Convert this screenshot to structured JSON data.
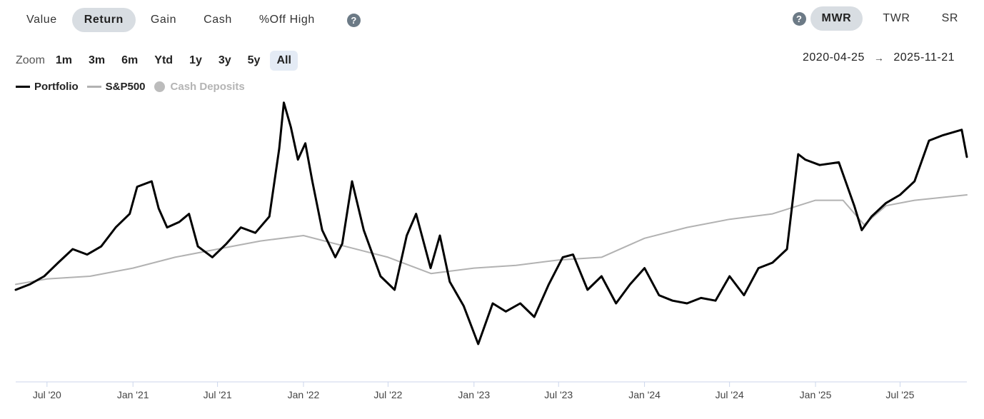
{
  "metric_tabs": [
    {
      "label": "Value",
      "active": false
    },
    {
      "label": "Return",
      "active": true
    },
    {
      "label": "Gain",
      "active": false
    },
    {
      "label": "Cash",
      "active": false
    },
    {
      "label": "%Off High",
      "active": false
    }
  ],
  "method_tabs": [
    {
      "label": "MWR",
      "active": true
    },
    {
      "label": "TWR",
      "active": false
    },
    {
      "label": "SR",
      "active": false
    }
  ],
  "help_icon": "?",
  "zoom": {
    "label": "Zoom",
    "options": [
      "1m",
      "3m",
      "6m",
      "Ytd",
      "1y",
      "3y",
      "5y",
      "All"
    ],
    "active": "All"
  },
  "date_range": {
    "start": "2020-04-25",
    "arrow": "→",
    "end": "2025-11-21"
  },
  "legend": [
    {
      "name": "Portfolio",
      "color": "#000000",
      "marker": "line",
      "enabled": true
    },
    {
      "name": "S&P500",
      "color": "#b2b2b2",
      "marker": "line",
      "enabled": true
    },
    {
      "name": "Cash Deposits",
      "color": "#bcbcbc",
      "marker": "dot",
      "enabled": false
    }
  ],
  "chart_data": {
    "type": "line",
    "title": "",
    "xlabel": "",
    "ylabel": "",
    "x_axis": {
      "range": [
        "2020-04-25",
        "2025-11-21"
      ],
      "ticks": [
        {
          "date": "2020-07-01",
          "label": "Jul '20"
        },
        {
          "date": "2021-01-01",
          "label": "Jan '21"
        },
        {
          "date": "2021-07-01",
          "label": "Jul '21"
        },
        {
          "date": "2022-01-01",
          "label": "Jan '22"
        },
        {
          "date": "2022-07-01",
          "label": "Jul '22"
        },
        {
          "date": "2023-01-01",
          "label": "Jan '23"
        },
        {
          "date": "2023-07-01",
          "label": "Jul '23"
        },
        {
          "date": "2024-01-01",
          "label": "Jan '24"
        },
        {
          "date": "2024-07-01",
          "label": "Jul '24"
        },
        {
          "date": "2025-01-01",
          "label": "Jan '25"
        },
        {
          "date": "2025-07-01",
          "label": "Jul '25"
        }
      ]
    },
    "y_axis": {
      "visible": false,
      "range": [
        0,
        100
      ],
      "unit": "relative"
    },
    "grid": false,
    "legend_position": "top-left",
    "series": [
      {
        "name": "Portfolio",
        "color": "#000000",
        "points": [
          [
            "2020-04-25",
            30
          ],
          [
            "2020-05-25",
            32
          ],
          [
            "2020-06-25",
            35
          ],
          [
            "2020-07-25",
            40
          ],
          [
            "2020-08-25",
            45
          ],
          [
            "2020-09-25",
            43
          ],
          [
            "2020-10-25",
            46
          ],
          [
            "2020-11-25",
            53
          ],
          [
            "2020-12-25",
            58
          ],
          [
            "2021-01-10",
            68
          ],
          [
            "2021-02-10",
            70
          ],
          [
            "2021-02-25",
            60
          ],
          [
            "2021-03-15",
            53
          ],
          [
            "2021-04-10",
            55
          ],
          [
            "2021-05-01",
            58
          ],
          [
            "2021-05-20",
            46
          ],
          [
            "2021-06-20",
            42
          ],
          [
            "2021-07-20",
            47
          ],
          [
            "2021-08-20",
            53
          ],
          [
            "2021-09-20",
            51
          ],
          [
            "2021-10-20",
            57
          ],
          [
            "2021-11-10",
            82
          ],
          [
            "2021-11-20",
            99
          ],
          [
            "2021-12-05",
            90
          ],
          [
            "2021-12-20",
            78
          ],
          [
            "2022-01-05",
            84
          ],
          [
            "2022-01-20",
            70
          ],
          [
            "2022-02-10",
            52
          ],
          [
            "2022-03-10",
            42
          ],
          [
            "2022-03-25",
            47
          ],
          [
            "2022-04-15",
            70
          ],
          [
            "2022-05-10",
            52
          ],
          [
            "2022-06-15",
            35
          ],
          [
            "2022-07-15",
            30
          ],
          [
            "2022-08-10",
            50
          ],
          [
            "2022-08-30",
            58
          ],
          [
            "2022-09-30",
            38
          ],
          [
            "2022-10-20",
            50
          ],
          [
            "2022-11-10",
            33
          ],
          [
            "2022-12-10",
            24
          ],
          [
            "2023-01-10",
            10
          ],
          [
            "2023-02-10",
            25
          ],
          [
            "2023-03-10",
            22
          ],
          [
            "2023-04-10",
            25
          ],
          [
            "2023-05-10",
            20
          ],
          [
            "2023-06-10",
            32
          ],
          [
            "2023-07-10",
            42
          ],
          [
            "2023-08-01",
            43
          ],
          [
            "2023-09-01",
            30
          ],
          [
            "2023-10-01",
            35
          ],
          [
            "2023-11-01",
            25
          ],
          [
            "2023-12-01",
            32
          ],
          [
            "2024-01-01",
            38
          ],
          [
            "2024-02-01",
            28
          ],
          [
            "2024-03-01",
            26
          ],
          [
            "2024-04-01",
            25
          ],
          [
            "2024-05-01",
            27
          ],
          [
            "2024-06-01",
            26
          ],
          [
            "2024-07-01",
            35
          ],
          [
            "2024-08-01",
            28
          ],
          [
            "2024-09-01",
            38
          ],
          [
            "2024-10-01",
            40
          ],
          [
            "2024-11-01",
            45
          ],
          [
            "2024-11-25",
            80
          ],
          [
            "2024-12-10",
            78
          ],
          [
            "2025-01-10",
            76
          ],
          [
            "2025-02-20",
            77
          ],
          [
            "2025-03-25",
            61
          ],
          [
            "2025-04-10",
            52
          ],
          [
            "2025-05-01",
            57
          ],
          [
            "2025-06-01",
            62
          ],
          [
            "2025-07-01",
            65
          ],
          [
            "2025-08-01",
            70
          ],
          [
            "2025-09-01",
            85
          ],
          [
            "2025-10-01",
            87
          ],
          [
            "2025-11-10",
            89
          ],
          [
            "2025-11-21",
            79
          ]
        ]
      },
      {
        "name": "S&P500",
        "color": "#b2b2b2",
        "points": [
          [
            "2020-04-25",
            32
          ],
          [
            "2020-07-01",
            34
          ],
          [
            "2020-10-01",
            35
          ],
          [
            "2021-01-01",
            38
          ],
          [
            "2021-04-01",
            42
          ],
          [
            "2021-07-01",
            45
          ],
          [
            "2021-10-01",
            48
          ],
          [
            "2022-01-01",
            50
          ],
          [
            "2022-04-01",
            46
          ],
          [
            "2022-07-01",
            42
          ],
          [
            "2022-10-01",
            36
          ],
          [
            "2023-01-01",
            38
          ],
          [
            "2023-04-01",
            39
          ],
          [
            "2023-07-01",
            41
          ],
          [
            "2023-10-01",
            42
          ],
          [
            "2024-01-01",
            49
          ],
          [
            "2024-04-01",
            53
          ],
          [
            "2024-07-01",
            56
          ],
          [
            "2024-10-01",
            58
          ],
          [
            "2025-01-01",
            63
          ],
          [
            "2025-03-01",
            63
          ],
          [
            "2025-04-15",
            54
          ],
          [
            "2025-06-01",
            61
          ],
          [
            "2025-08-01",
            63
          ],
          [
            "2025-11-21",
            65
          ]
        ]
      }
    ]
  }
}
